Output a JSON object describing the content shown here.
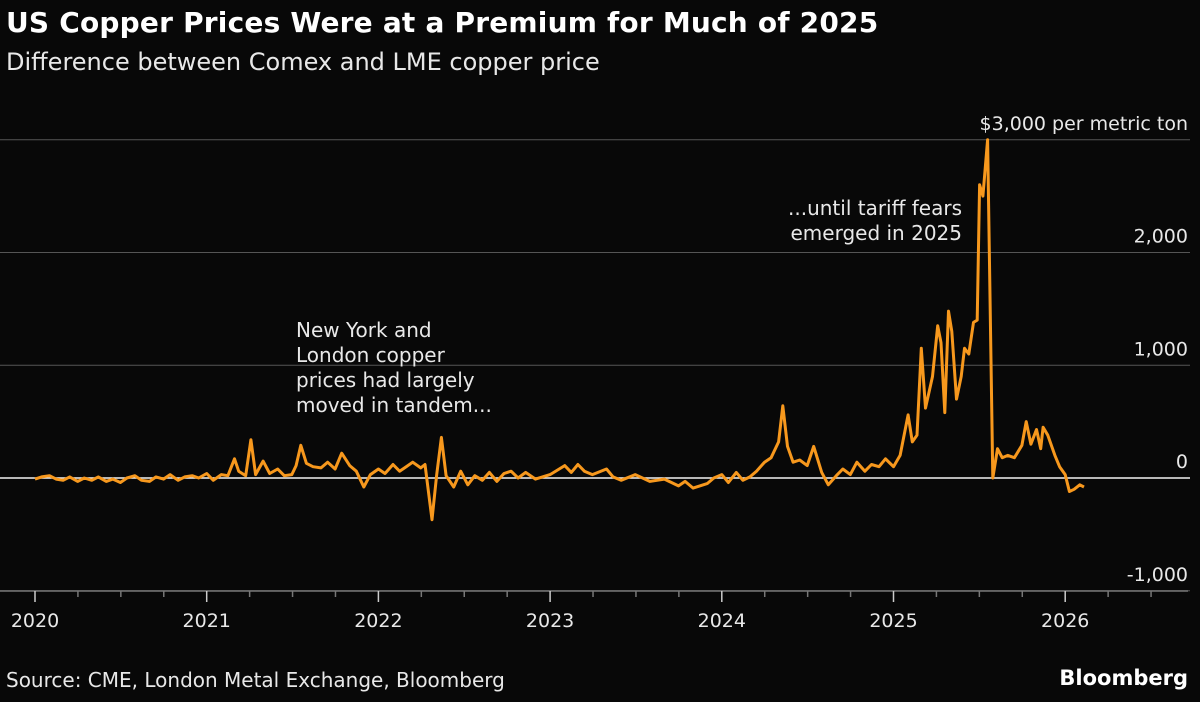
{
  "header": {
    "title": "US Copper Prices Were at a Premium for Much of 2025",
    "subtitle": "Difference between Comex and LME copper price"
  },
  "footer": {
    "source": "Source: CME, London Metal Exchange, Bloomberg",
    "brand": "Bloomberg"
  },
  "chart_data": {
    "type": "line",
    "title": "US Copper Prices Were at a Premium for Much of 2025",
    "subtitle": "Difference between Comex and LME copper price",
    "unit_label": "$3,000 per metric ton",
    "ylim": [
      -1000,
      3000
    ],
    "xlim": [
      "2020-01-01",
      "2026-12-31"
    ],
    "y_ticks": [
      {
        "value": 3000,
        "label": "$3,000 per metric ton"
      },
      {
        "value": 2000,
        "label": "2,000"
      },
      {
        "value": 1000,
        "label": "1,000"
      },
      {
        "value": 0,
        "label": "0"
      },
      {
        "value": -1000,
        "label": "-1,000"
      }
    ],
    "x_ticks": [
      "2020",
      "2021",
      "2022",
      "2023",
      "2024",
      "2025",
      "2026"
    ],
    "grid": true,
    "line_color": "#f7981d",
    "annotations": [
      {
        "lines": [
          "New York and",
          "London copper",
          "prices had largely",
          "moved in tandem..."
        ]
      },
      {
        "lines": [
          "...until tariff fears",
          "emerged in 2025"
        ]
      }
    ],
    "series": [
      {
        "points": [
          [
            "2020-01-01",
            -10
          ],
          [
            "2020-01-15",
            10
          ],
          [
            "2020-02-01",
            20
          ],
          [
            "2020-02-15",
            -10
          ],
          [
            "2020-03-01",
            -20
          ],
          [
            "2020-03-15",
            10
          ],
          [
            "2020-04-01",
            -30
          ],
          [
            "2020-04-15",
            0
          ],
          [
            "2020-05-01",
            -20
          ],
          [
            "2020-05-15",
            10
          ],
          [
            "2020-06-01",
            -30
          ],
          [
            "2020-06-15",
            -10
          ],
          [
            "2020-07-01",
            -40
          ],
          [
            "2020-07-15",
            0
          ],
          [
            "2020-08-01",
            20
          ],
          [
            "2020-08-15",
            -20
          ],
          [
            "2020-09-01",
            -30
          ],
          [
            "2020-09-15",
            10
          ],
          [
            "2020-10-01",
            -10
          ],
          [
            "2020-10-15",
            30
          ],
          [
            "2020-11-01",
            -20
          ],
          [
            "2020-11-15",
            10
          ],
          [
            "2020-12-01",
            20
          ],
          [
            "2020-12-15",
            0
          ],
          [
            "2021-01-01",
            40
          ],
          [
            "2021-01-15",
            -20
          ],
          [
            "2021-02-01",
            30
          ],
          [
            "2021-02-15",
            20
          ],
          [
            "2021-03-01",
            170
          ],
          [
            "2021-03-10",
            60
          ],
          [
            "2021-03-25",
            20
          ],
          [
            "2021-04-05",
            340
          ],
          [
            "2021-04-15",
            30
          ],
          [
            "2021-05-01",
            150
          ],
          [
            "2021-05-15",
            40
          ],
          [
            "2021-06-01",
            80
          ],
          [
            "2021-06-15",
            20
          ],
          [
            "2021-07-01",
            30
          ],
          [
            "2021-07-10",
            110
          ],
          [
            "2021-07-20",
            290
          ],
          [
            "2021-08-01",
            130
          ],
          [
            "2021-08-15",
            100
          ],
          [
            "2021-09-01",
            90
          ],
          [
            "2021-09-15",
            140
          ],
          [
            "2021-10-01",
            80
          ],
          [
            "2021-10-15",
            220
          ],
          [
            "2021-11-01",
            110
          ],
          [
            "2021-11-15",
            60
          ],
          [
            "2021-12-01",
            -80
          ],
          [
            "2021-12-15",
            30
          ],
          [
            "2022-01-01",
            80
          ],
          [
            "2022-01-15",
            40
          ],
          [
            "2022-02-01",
            120
          ],
          [
            "2022-02-15",
            60
          ],
          [
            "2022-03-01",
            100
          ],
          [
            "2022-03-15",
            140
          ],
          [
            "2022-04-01",
            90
          ],
          [
            "2022-04-10",
            120
          ],
          [
            "2022-04-25",
            -370
          ],
          [
            "2022-05-05",
            30
          ],
          [
            "2022-05-15",
            360
          ],
          [
            "2022-05-25",
            20
          ],
          [
            "2022-06-10",
            -80
          ],
          [
            "2022-06-25",
            60
          ],
          [
            "2022-07-10",
            -60
          ],
          [
            "2022-07-25",
            20
          ],
          [
            "2022-08-10",
            -20
          ],
          [
            "2022-08-25",
            50
          ],
          [
            "2022-09-10",
            -30
          ],
          [
            "2022-09-25",
            40
          ],
          [
            "2022-10-10",
            60
          ],
          [
            "2022-10-25",
            0
          ],
          [
            "2022-11-10",
            50
          ],
          [
            "2022-12-01",
            -10
          ],
          [
            "2023-01-01",
            30
          ],
          [
            "2023-02-01",
            110
          ],
          [
            "2023-02-15",
            50
          ],
          [
            "2023-03-01",
            120
          ],
          [
            "2023-03-15",
            60
          ],
          [
            "2023-04-01",
            30
          ],
          [
            "2023-05-01",
            80
          ],
          [
            "2023-05-15",
            10
          ],
          [
            "2023-06-01",
            -20
          ],
          [
            "2023-07-01",
            30
          ],
          [
            "2023-08-01",
            -30
          ],
          [
            "2023-09-01",
            -10
          ],
          [
            "2023-10-01",
            -70
          ],
          [
            "2023-10-15",
            -30
          ],
          [
            "2023-11-01",
            -90
          ],
          [
            "2023-12-01",
            -50
          ],
          [
            "2023-12-15",
            0
          ],
          [
            "2024-01-01",
            30
          ],
          [
            "2024-01-15",
            -40
          ],
          [
            "2024-02-01",
            50
          ],
          [
            "2024-02-15",
            -20
          ],
          [
            "2024-03-01",
            10
          ],
          [
            "2024-03-15",
            60
          ],
          [
            "2024-04-01",
            140
          ],
          [
            "2024-04-15",
            180
          ],
          [
            "2024-05-01",
            320
          ],
          [
            "2024-05-10",
            640
          ],
          [
            "2024-05-20",
            280
          ],
          [
            "2024-06-01",
            140
          ],
          [
            "2024-06-15",
            160
          ],
          [
            "2024-07-01",
            110
          ],
          [
            "2024-07-15",
            280
          ],
          [
            "2024-08-01",
            50
          ],
          [
            "2024-08-15",
            -60
          ],
          [
            "2024-09-01",
            20
          ],
          [
            "2024-09-15",
            80
          ],
          [
            "2024-10-01",
            30
          ],
          [
            "2024-10-15",
            140
          ],
          [
            "2024-11-01",
            60
          ],
          [
            "2024-11-15",
            120
          ],
          [
            "2024-12-01",
            100
          ],
          [
            "2024-12-15",
            170
          ],
          [
            "2025-01-01",
            100
          ],
          [
            "2025-01-15",
            200
          ],
          [
            "2025-02-01",
            560
          ],
          [
            "2025-02-10",
            320
          ],
          [
            "2025-02-20",
            380
          ],
          [
            "2025-03-01",
            1150
          ],
          [
            "2025-03-10",
            620
          ],
          [
            "2025-03-25",
            900
          ],
          [
            "2025-04-05",
            1350
          ],
          [
            "2025-04-12",
            1200
          ],
          [
            "2025-04-20",
            580
          ],
          [
            "2025-04-28",
            1480
          ],
          [
            "2025-05-05",
            1300
          ],
          [
            "2025-05-15",
            700
          ],
          [
            "2025-05-25",
            900
          ],
          [
            "2025-06-01",
            1150
          ],
          [
            "2025-06-10",
            1100
          ],
          [
            "2025-06-20",
            1380
          ],
          [
            "2025-06-28",
            1400
          ],
          [
            "2025-07-03",
            2600
          ],
          [
            "2025-07-10",
            2500
          ],
          [
            "2025-07-20",
            3000
          ],
          [
            "2025-07-31",
            0
          ],
          [
            "2025-08-10",
            260
          ],
          [
            "2025-08-20",
            180
          ],
          [
            "2025-09-01",
            200
          ],
          [
            "2025-09-15",
            180
          ],
          [
            "2025-10-01",
            290
          ],
          [
            "2025-10-10",
            500
          ],
          [
            "2025-10-20",
            300
          ],
          [
            "2025-11-01",
            430
          ],
          [
            "2025-11-10",
            260
          ],
          [
            "2025-11-15",
            450
          ],
          [
            "2025-11-25",
            380
          ],
          [
            "2025-12-10",
            200
          ],
          [
            "2025-12-20",
            100
          ],
          [
            "2026-01-01",
            30
          ],
          [
            "2026-01-10",
            -120
          ],
          [
            "2026-01-20",
            -100
          ],
          [
            "2026-02-01",
            -60
          ],
          [
            "2026-02-10",
            -80
          ]
        ]
      }
    ]
  }
}
